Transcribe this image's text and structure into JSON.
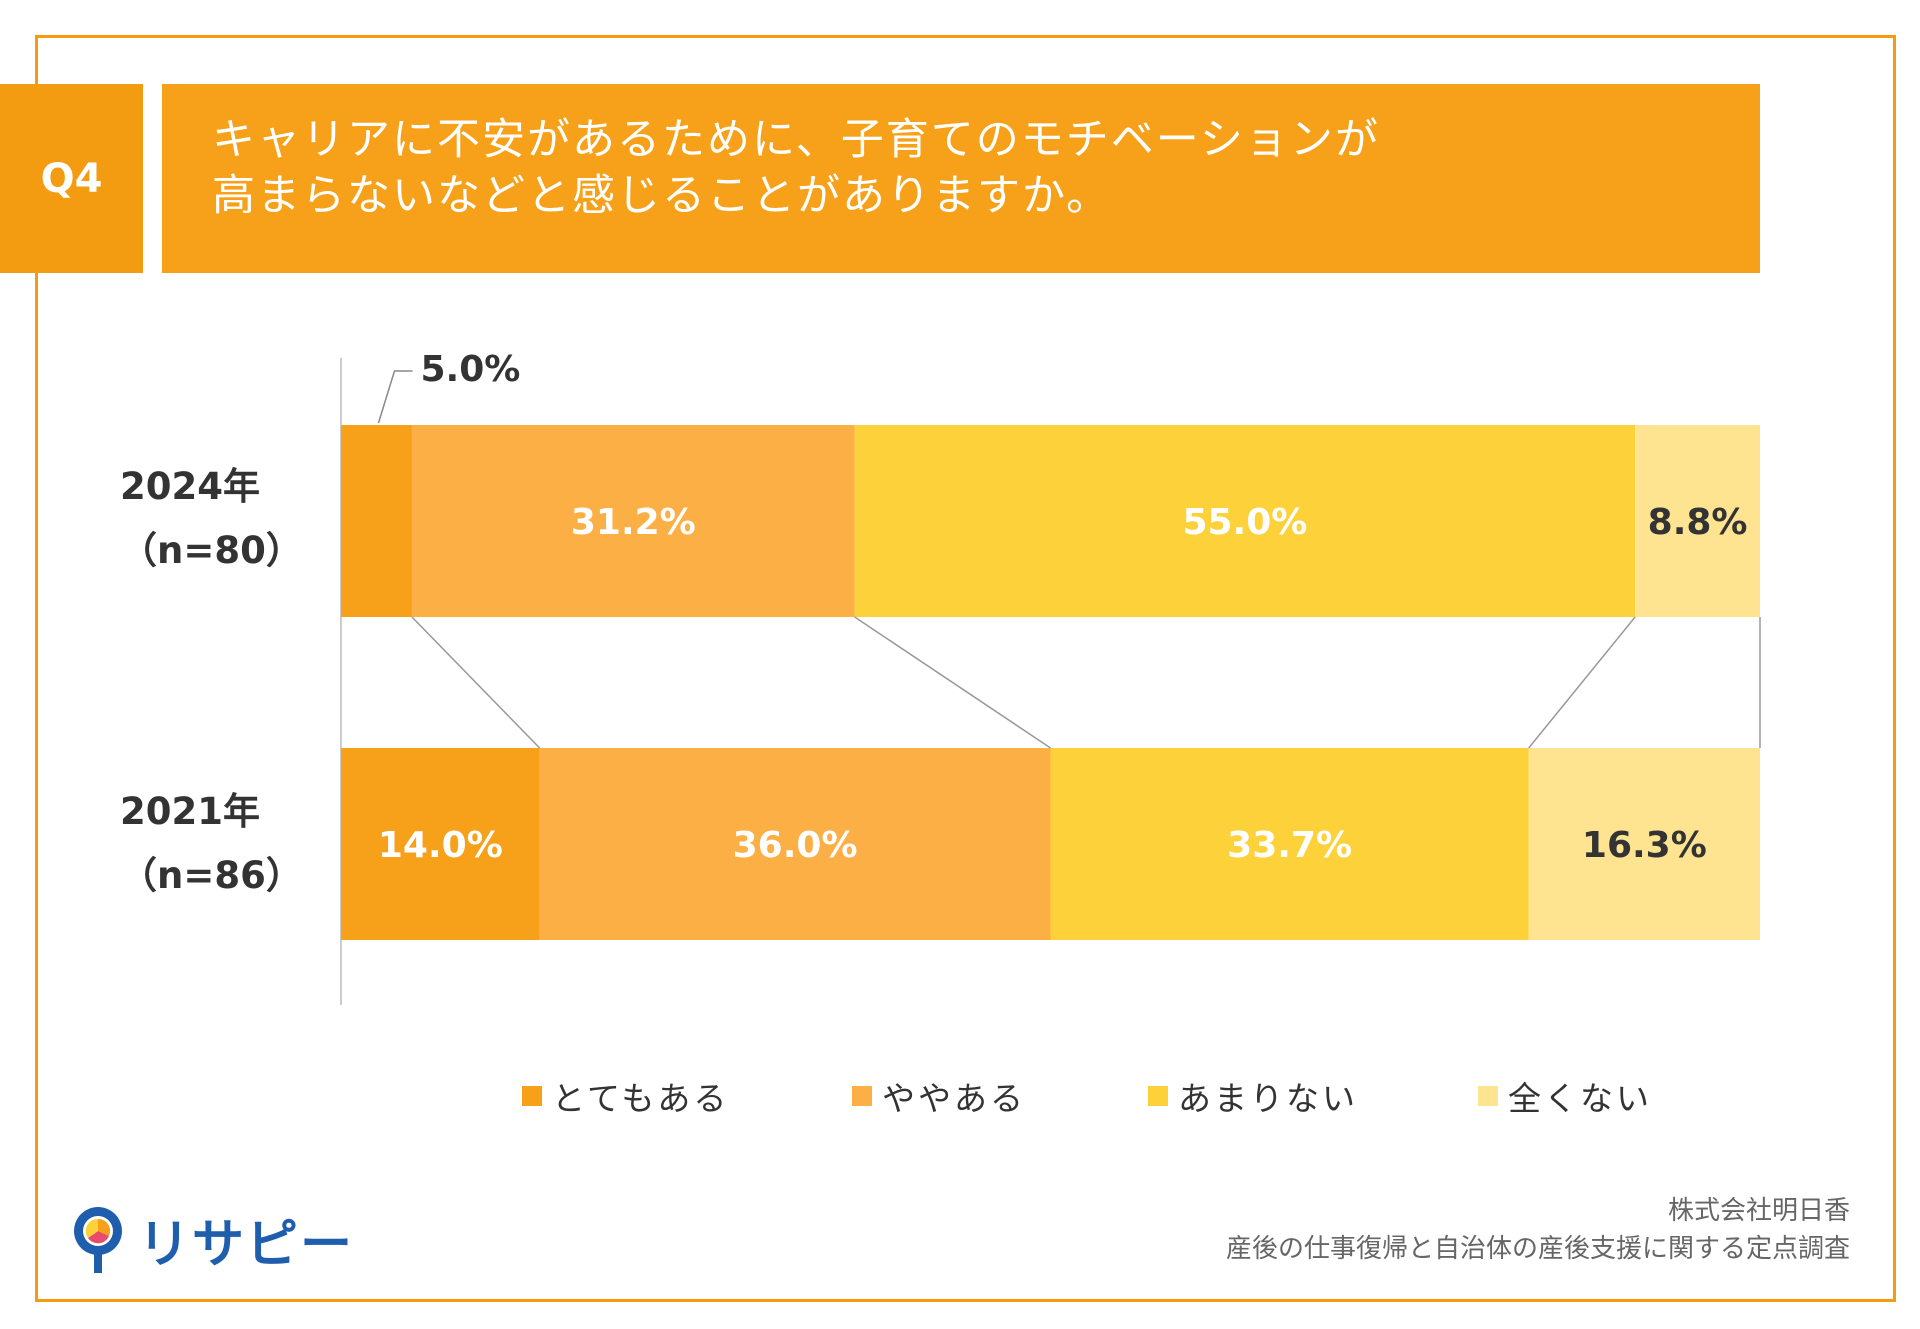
{
  "header": {
    "badge": "Q4",
    "title_line1": "キャリアに不安があるために、子育てのモチベーションが",
    "title_line2": "高まらないなどと感じることがありますか。"
  },
  "chart_data": {
    "type": "bar",
    "orientation": "horizontal",
    "stacked": true,
    "categories": [
      "2024年（n=80）",
      "2021年（n=86）"
    ],
    "category_lines": [
      [
        "2024年",
        "（n=80）"
      ],
      [
        "2021年",
        "（n=86）"
      ]
    ],
    "series": [
      {
        "name": "とてもある",
        "values": [
          5.0,
          14.0
        ],
        "color": "#F7A11A"
      },
      {
        "name": "ややある",
        "values": [
          31.2,
          36.0
        ],
        "color": "#FBAF44"
      },
      {
        "name": "あまりない",
        "values": [
          55.0,
          33.7
        ],
        "color": "#FDD13A"
      },
      {
        "name": "全くない",
        "values": [
          8.8,
          16.3
        ],
        "color": "#FEE391"
      }
    ],
    "labels": [
      [
        "5.0%",
        "31.2%",
        "55.0%",
        "8.8%"
      ],
      [
        "14.0%",
        "36.0%",
        "33.7%",
        "16.3%"
      ]
    ],
    "xlim": [
      0,
      100
    ],
    "grid": false,
    "legend": "bottom"
  },
  "footer": {
    "source_line1": "株式会社明日香",
    "source_line2": "産後の仕事復帰と自治体の産後支援に関する定点調査",
    "logo_text": "リサピー"
  }
}
